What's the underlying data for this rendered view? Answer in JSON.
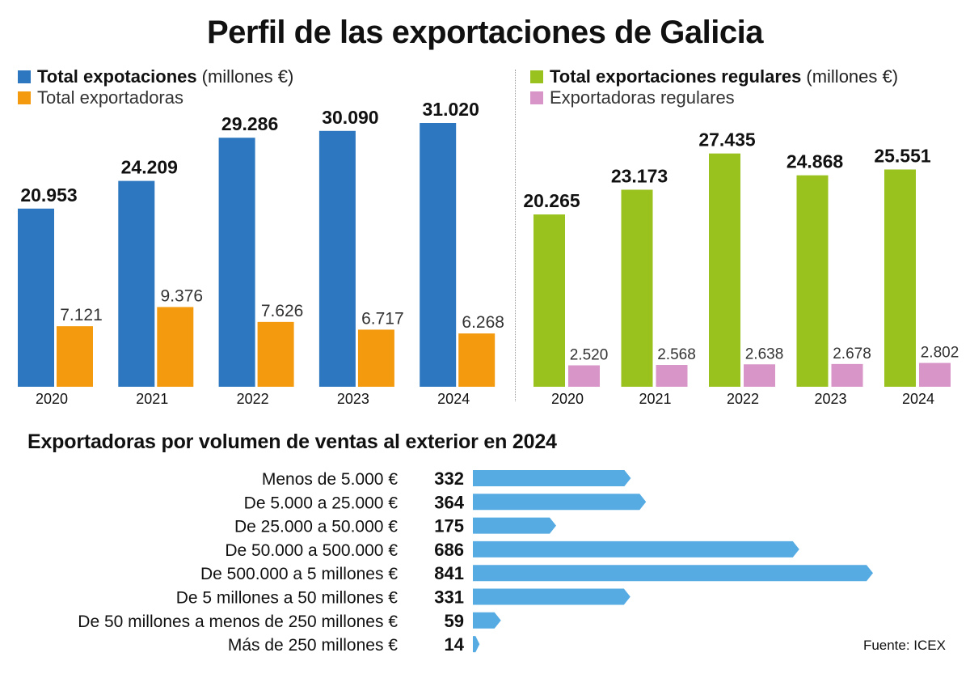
{
  "title": "Perfil de las exportaciones de Galicia",
  "left_legend": {
    "series1_label": "Total expotaciones",
    "series1_unit": "(millones €)",
    "series2_label": "Total exportadoras"
  },
  "right_legend": {
    "series1_label": "Total exportaciones regulares",
    "series1_unit": "(millones €)",
    "series2_label": "Exportadoras regulares"
  },
  "bottom_title": "Exportadoras por volumen de ventas al exterior en 2024",
  "source": "Fuente: ICEX",
  "colors": {
    "blue": "#2c77c0",
    "orange": "#f39a0f",
    "green": "#9ac21e",
    "pink": "#d896c8",
    "light_blue": "#56abe3"
  },
  "chart_data": [
    {
      "type": "bar",
      "categories": [
        "2020",
        "2021",
        "2022",
        "2023",
        "2024"
      ],
      "series": [
        {
          "name": "Total expotaciones",
          "values": [
            20953,
            24209,
            29286,
            30090,
            31020
          ],
          "labels": [
            "20.953",
            "24.209",
            "29.286",
            "30.090",
            "31.020"
          ]
        },
        {
          "name": "Total exportadoras",
          "values": [
            7121,
            9376,
            7626,
            6717,
            6268
          ],
          "labels": [
            "7.121",
            "9.376",
            "7.626",
            "6.717",
            "6.268"
          ]
        }
      ],
      "ylim": [
        0,
        31500
      ]
    },
    {
      "type": "bar",
      "categories": [
        "2020",
        "2021",
        "2022",
        "2023",
        "2024"
      ],
      "series": [
        {
          "name": "Total exportaciones regulares",
          "values": [
            20265,
            23173,
            27435,
            24868,
            25551
          ],
          "labels": [
            "20.265",
            "23.173",
            "27.435",
            "24.868",
            "25.551"
          ]
        },
        {
          "name": "Exportadoras regulares",
          "values": [
            2520,
            2568,
            2638,
            2678,
            2802
          ],
          "labels": [
            "2.520",
            "2.568",
            "2.638",
            "2.678",
            "2.802"
          ]
        }
      ],
      "ylim": [
        0,
        31500
      ]
    },
    {
      "type": "bar",
      "orientation": "horizontal",
      "categories": [
        "Menos de 5.000 €",
        "De 5.000 a 25.000 €",
        "De 25.000 a 50.000 €",
        "De 50.000 a 500.000 €",
        "De 500.000 a 5 millones €",
        "De 5 millones a 50 millones €",
        "De 50 millones a menos de 250 millones €",
        "Más de 250 millones €"
      ],
      "values": [
        332,
        364,
        175,
        686,
        841,
        331,
        59,
        14
      ],
      "labels": [
        "332",
        "364",
        "175",
        "686",
        "841",
        "331",
        "59",
        "14"
      ],
      "xlim": [
        0,
        841
      ]
    }
  ]
}
